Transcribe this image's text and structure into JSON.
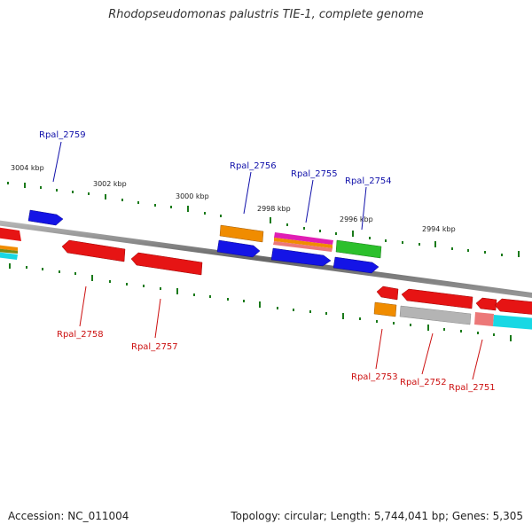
{
  "title": "Rhodopseudomonas palustris TIE-1, complete genome",
  "footer": {
    "accession": "Accession: NC_011004",
    "summary": "Topology: circular; Length: 5,744,041 bp; Genes: 5,305"
  },
  "colors": {
    "backbone": "#777777",
    "tick": "#1a7a1a",
    "forward_label": "#1111aa",
    "reverse_label": "#cc1111"
  },
  "ticks": [
    {
      "label": "3004 kbp"
    },
    {
      "label": "3002 kbp"
    },
    {
      "label": "3000 kbp"
    },
    {
      "label": "2998 kbp"
    },
    {
      "label": "2996 kbp"
    },
    {
      "label": "2994 kbp"
    }
  ],
  "labels": {
    "forward": [
      {
        "text": "Rpal_2759"
      },
      {
        "text": "Rpal_2756"
      },
      {
        "text": "Rpal_2755"
      },
      {
        "text": "Rpal_2754"
      }
    ],
    "reverse": [
      {
        "text": "Rpal_2758"
      },
      {
        "text": "Rpal_2757"
      },
      {
        "text": "Rpal_2753"
      },
      {
        "text": "Rpal_2752"
      },
      {
        "text": "Rpal_2751"
      }
    ]
  },
  "gene_colors": {
    "blue": "#1414e6",
    "red": "#e61414",
    "orange": "#f08c00",
    "magenta": "#e01eb4",
    "green": "#2cc02c",
    "gray": "#b4b4b4",
    "pink": "#ec7878",
    "cyan": "#18d8e4",
    "olive": "#7a8a14"
  }
}
